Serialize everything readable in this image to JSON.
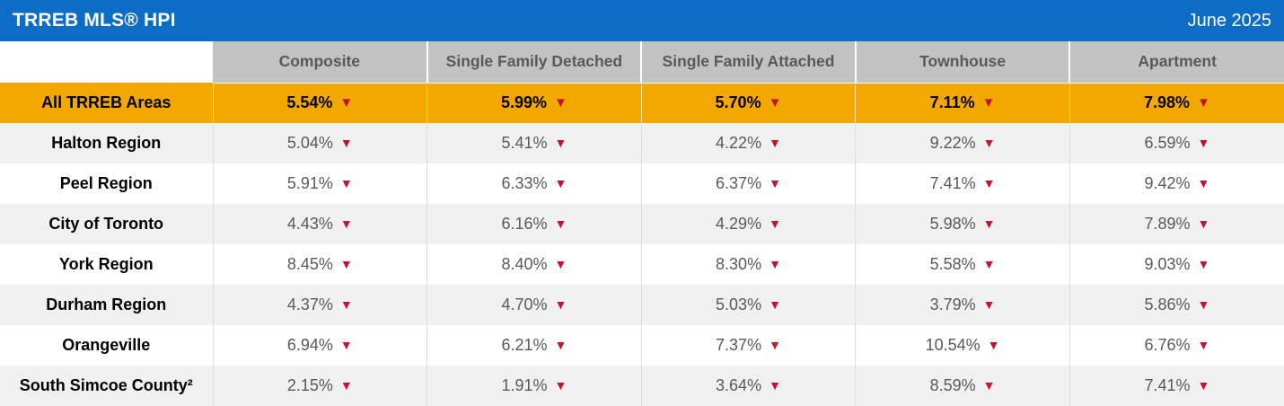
{
  "header": {
    "title": "TRREB MLS® HPI",
    "date": "June 2025"
  },
  "table": {
    "arrow": "▼",
    "columns": [
      "Composite",
      "Single Family Detached",
      "Single Family Attached",
      "Townhouse",
      "Apartment"
    ],
    "rows": [
      {
        "label": "All TRREB Areas",
        "highlight": true,
        "values": [
          "5.54%",
          "5.99%",
          "5.70%",
          "7.11%",
          "7.98%"
        ]
      },
      {
        "label": "Halton Region",
        "highlight": false,
        "values": [
          "5.04%",
          "5.41%",
          "4.22%",
          "9.22%",
          "6.59%"
        ]
      },
      {
        "label": "Peel Region",
        "highlight": false,
        "values": [
          "5.91%",
          "6.33%",
          "6.37%",
          "7.41%",
          "9.42%"
        ]
      },
      {
        "label": "City of Toronto",
        "highlight": false,
        "values": [
          "4.43%",
          "6.16%",
          "4.29%",
          "5.98%",
          "7.89%"
        ]
      },
      {
        "label": "York Region",
        "highlight": false,
        "values": [
          "8.45%",
          "8.40%",
          "8.30%",
          "5.58%",
          "9.03%"
        ]
      },
      {
        "label": "Durham Region",
        "highlight": false,
        "values": [
          "4.37%",
          "4.70%",
          "5.03%",
          "3.79%",
          "5.86%"
        ]
      },
      {
        "label": "Orangeville",
        "highlight": false,
        "values": [
          "6.94%",
          "6.21%",
          "7.37%",
          "10.54%",
          "6.76%"
        ]
      },
      {
        "label": "South Simcoe County²",
        "highlight": false,
        "values": [
          "2.15%",
          "1.91%",
          "3.64%",
          "8.59%",
          "7.41%"
        ]
      }
    ]
  },
  "colors": {
    "brand_blue": "#0d6cc5",
    "highlight_gold": "#f3a800",
    "header_gray": "#c2c2c2",
    "alt_row_gray": "#f0f0f0",
    "value_text_gray": "#595959",
    "arrow_red": "#c41230"
  },
  "chart_data": {
    "type": "table",
    "title": "TRREB MLS® HPI",
    "subtitle": "June 2025",
    "unit": "% (year-over-year change, all cells trending down)",
    "columns": [
      "Composite",
      "Single Family Detached",
      "Single Family Attached",
      "Townhouse",
      "Apartment"
    ],
    "rows": [
      {
        "label": "All TRREB Areas",
        "values": [
          5.54,
          5.99,
          5.7,
          7.11,
          7.98
        ],
        "direction": "down"
      },
      {
        "label": "Halton Region",
        "values": [
          5.04,
          5.41,
          4.22,
          9.22,
          6.59
        ],
        "direction": "down"
      },
      {
        "label": "Peel Region",
        "values": [
          5.91,
          6.33,
          6.37,
          7.41,
          9.42
        ],
        "direction": "down"
      },
      {
        "label": "City of Toronto",
        "values": [
          4.43,
          6.16,
          4.29,
          5.98,
          7.89
        ],
        "direction": "down"
      },
      {
        "label": "York Region",
        "values": [
          8.45,
          8.4,
          8.3,
          5.58,
          9.03
        ],
        "direction": "down"
      },
      {
        "label": "Durham Region",
        "values": [
          4.37,
          4.7,
          5.03,
          3.79,
          5.86
        ],
        "direction": "down"
      },
      {
        "label": "Orangeville",
        "values": [
          6.94,
          6.21,
          7.37,
          10.54,
          6.76
        ],
        "direction": "down"
      },
      {
        "label": "South Simcoe County²",
        "values": [
          2.15,
          1.91,
          3.64,
          8.59,
          7.41
        ],
        "direction": "down"
      }
    ]
  }
}
